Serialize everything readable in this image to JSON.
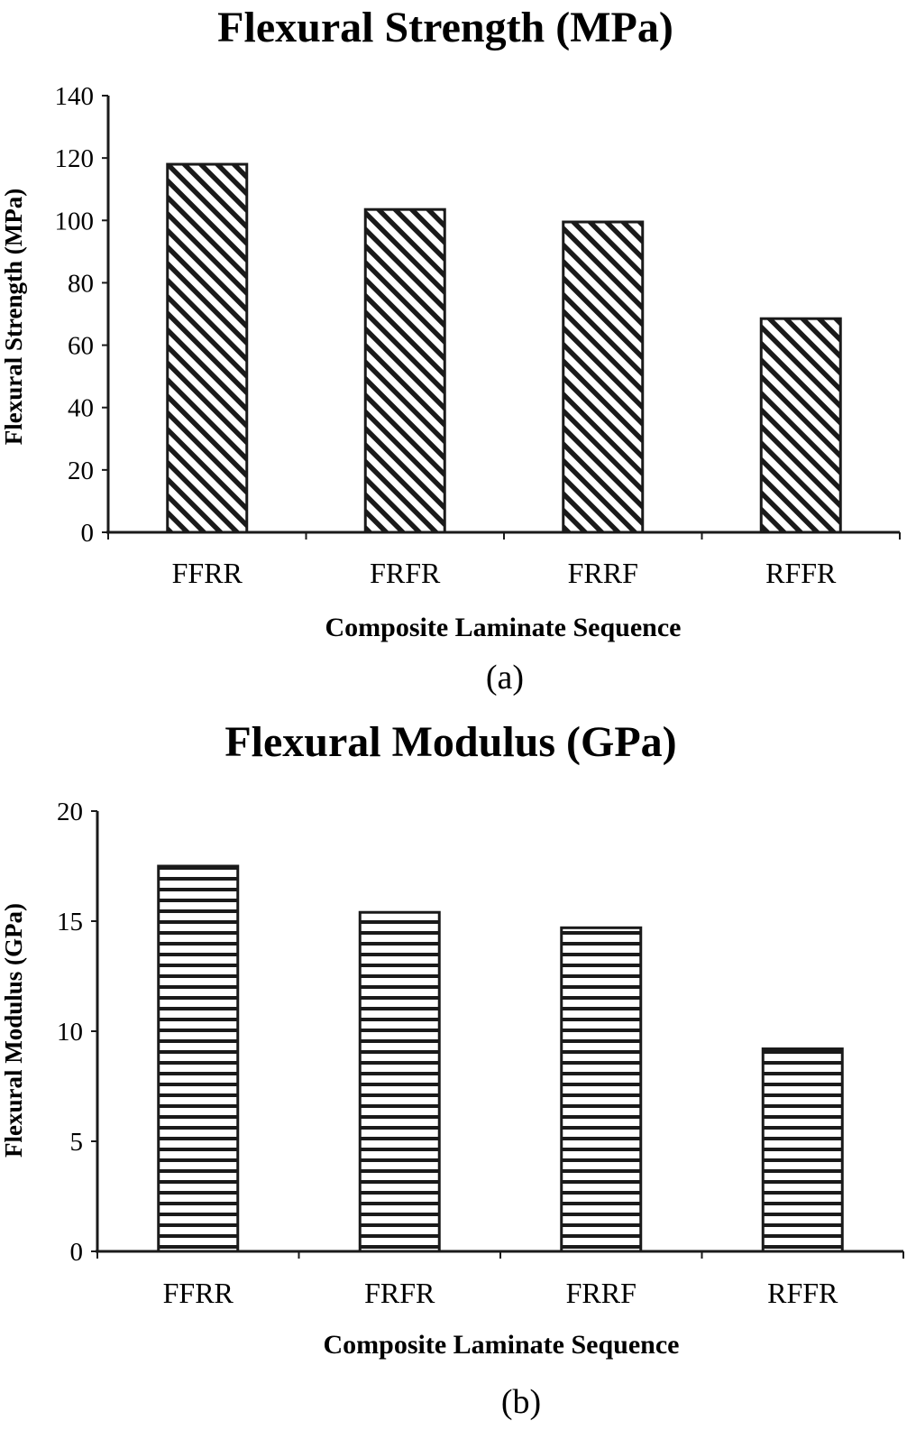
{
  "chart_data": [
    {
      "type": "bar",
      "title": "Flexural Strength (MPa)",
      "xlabel": "Composite Laminate Sequence",
      "ylabel": "Flexural Strength (MPa)",
      "categories": [
        "FFRR",
        "FRFR",
        "FRRF",
        "RFFR"
      ],
      "values": [
        118,
        103.5,
        99.5,
        68.5
      ],
      "ylim": [
        0,
        140
      ],
      "yticks": [
        "0",
        "20",
        "40",
        "60",
        "80",
        "100",
        "120",
        "140"
      ],
      "panel_label": "(a)",
      "pattern": "diagonal-hatch",
      "grid": false,
      "legend": "none"
    },
    {
      "type": "bar",
      "title": "Flexural Modulus (GPa)",
      "xlabel": "Composite Laminate Sequence",
      "ylabel": "Flexural Modulus (GPa)",
      "categories": [
        "FFRR",
        "FRFR",
        "FRRF",
        "RFFR"
      ],
      "values": [
        17.5,
        15.4,
        14.7,
        9.2
      ],
      "ylim": [
        0,
        20
      ],
      "yticks": [
        "0",
        "5",
        "10",
        "15",
        "20"
      ],
      "panel_label": "(b)",
      "pattern": "horizontal-stripes",
      "grid": false,
      "legend": "none"
    }
  ],
  "colors": {
    "ink": "#1a1a1a",
    "background": "#ffffff"
  }
}
